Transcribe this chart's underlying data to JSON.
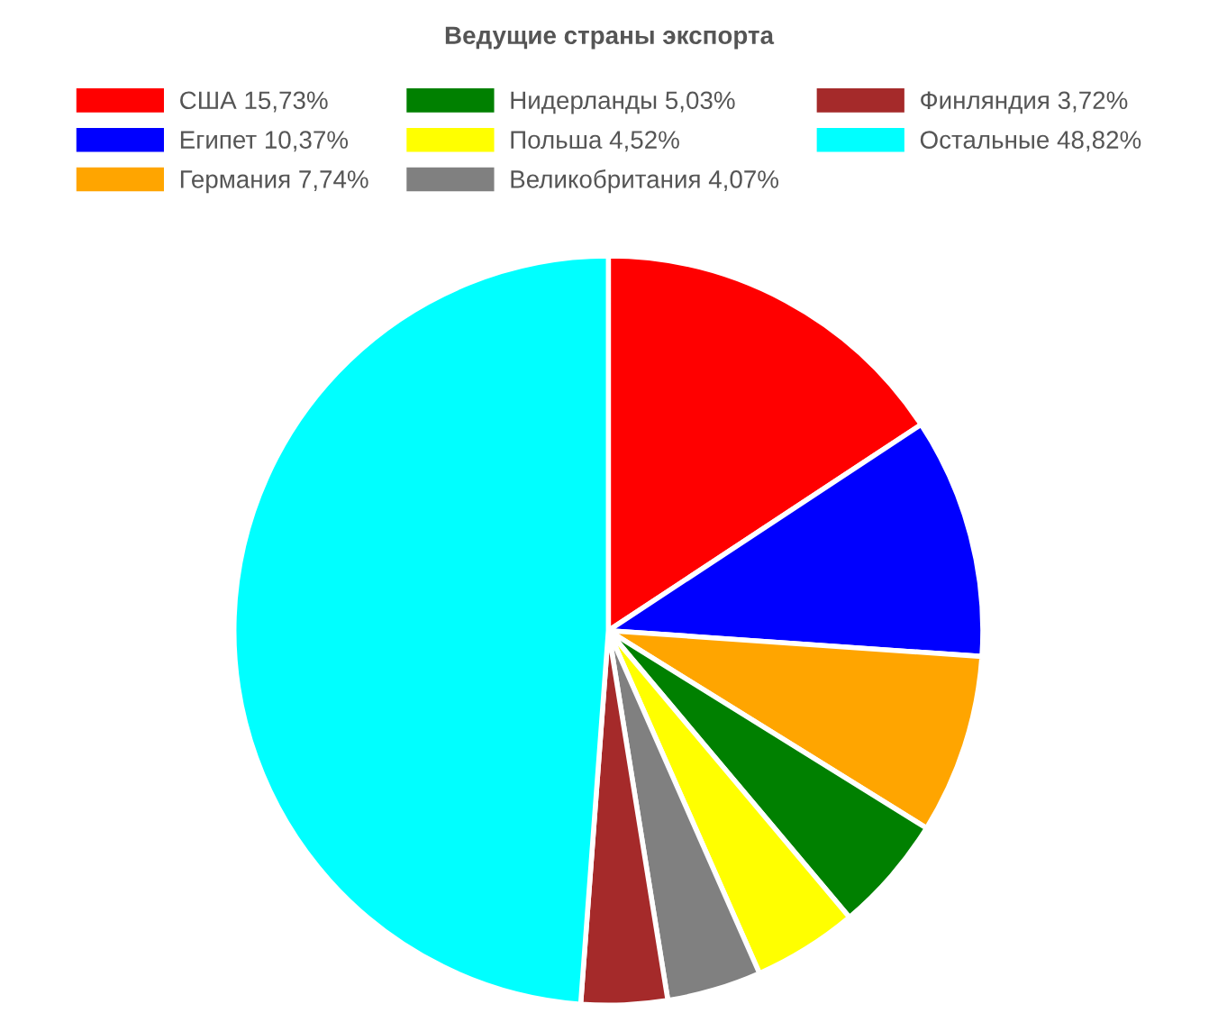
{
  "chart_data": {
    "type": "pie",
    "title": "Ведущие страны экспорта",
    "categories": [
      "США",
      "Египет",
      "Германия",
      "Нидерланды",
      "Польша",
      "Великобритания",
      "Финляндия",
      "Остальные"
    ],
    "values": [
      15.73,
      10.37,
      7.74,
      5.03,
      4.52,
      4.07,
      3.72,
      48.82
    ],
    "value_labels": [
      "15,73%",
      "10,37%",
      "7,74%",
      "5,03%",
      "4,52%",
      "4,07%",
      "3,72%",
      "48,82%"
    ],
    "colors": [
      "#ff0000",
      "#0000ff",
      "#ffa500",
      "#008000",
      "#ffff00",
      "#808080",
      "#a52a2a",
      "#00ffff"
    ],
    "legend": "top"
  }
}
